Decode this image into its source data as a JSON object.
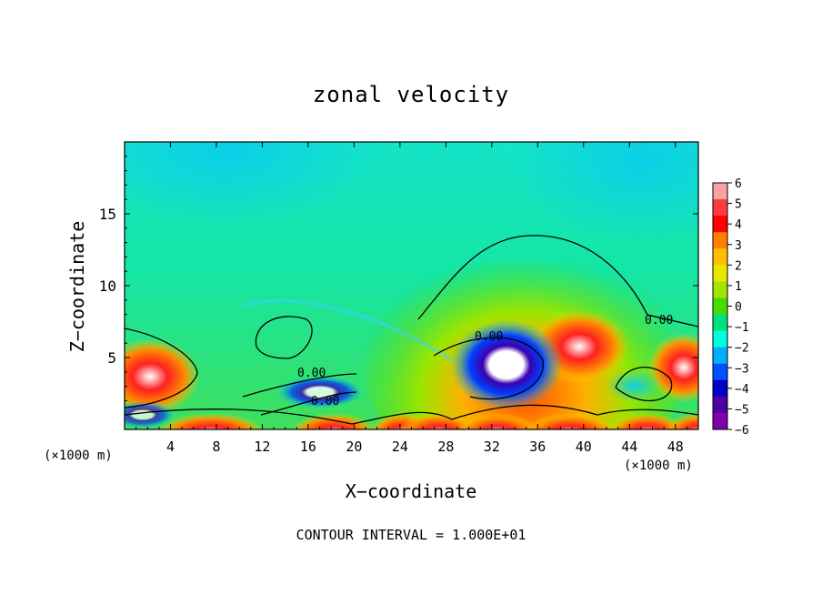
{
  "chart_data": {
    "type": "heatmap",
    "title": "zonal velocity",
    "xlabel": "X−coordinate",
    "ylabel": "Z−coordinate",
    "x_unit_left": "(×1000 m)",
    "x_unit_right": "(×1000 m)",
    "footer": "CONTOUR INTERVAL = 1.000E+01",
    "xlim": [
      0,
      50
    ],
    "ylim": [
      0,
      20
    ],
    "x_ticks": [
      4,
      8,
      12,
      16,
      20,
      24,
      28,
      32,
      36,
      40,
      44,
      48
    ],
    "x_tick_labels": [
      "4",
      "8",
      "12",
      "16",
      "20",
      "24",
      "28",
      "32",
      "36",
      "40",
      "44",
      "48"
    ],
    "y_ticks": [
      5,
      10,
      15
    ],
    "y_tick_labels": [
      "5",
      "10",
      "15"
    ],
    "colorbar": {
      "min": -6,
      "max": 6,
      "tick_labels": [
        "6",
        "5",
        "4",
        "3",
        "2",
        "1",
        "0",
        "−1",
        "−2",
        "−3",
        "−4",
        "−5",
        "−6"
      ],
      "colors": [
        "#f7a3a8",
        "#ff3b3b",
        "#ff0000",
        "#ff8000",
        "#ffc000",
        "#e7e700",
        "#a0e600",
        "#46dc00",
        "#00e080",
        "#00ffe0",
        "#00b0ff",
        "#0050ff",
        "#0000c8",
        "#5000a0",
        "#8000b0"
      ]
    },
    "contour_labels": [
      "0.00",
      "0.00",
      "0.00",
      "0.00"
    ]
  }
}
